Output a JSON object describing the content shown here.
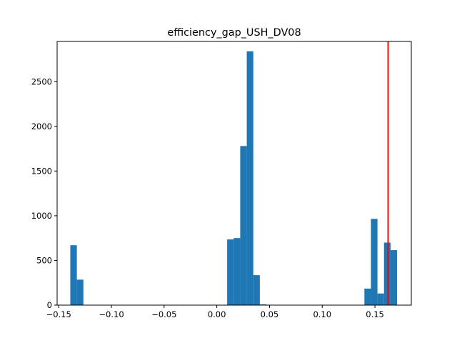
{
  "chart_data": {
    "type": "bar",
    "title": "efficiency_gap_USH_DV08",
    "xlabel": "",
    "ylabel": "",
    "xlim": [
      -0.1515,
      0.1845
    ],
    "ylim": [
      0,
      2950
    ],
    "bin_width": 0.0062,
    "bins": [
      {
        "x0": -0.139,
        "x1": -0.1328,
        "count": 670
      },
      {
        "x0": -0.1328,
        "x1": -0.1266,
        "count": 285
      },
      {
        "x0": 0.0098,
        "x1": 0.016,
        "count": 735
      },
      {
        "x0": 0.016,
        "x1": 0.0222,
        "count": 750
      },
      {
        "x0": 0.0222,
        "x1": 0.0284,
        "count": 1780
      },
      {
        "x0": 0.0284,
        "x1": 0.0346,
        "count": 2840
      },
      {
        "x0": 0.0346,
        "x1": 0.0408,
        "count": 335
      },
      {
        "x0": 0.0408,
        "x1": 0.047,
        "count": 8
      },
      {
        "x0": 0.14,
        "x1": 0.1462,
        "count": 185
      },
      {
        "x0": 0.1462,
        "x1": 0.1524,
        "count": 965
      },
      {
        "x0": 0.1524,
        "x1": 0.1586,
        "count": 130
      },
      {
        "x0": 0.1586,
        "x1": 0.1648,
        "count": 700
      },
      {
        "x0": 0.1648,
        "x1": 0.171,
        "count": 615
      }
    ],
    "vline": {
      "x": 0.1625,
      "color": "#ff0000"
    },
    "xticks": [
      -0.15,
      -0.1,
      -0.05,
      0.0,
      0.05,
      0.1,
      0.15
    ],
    "xtick_labels": [
      "−0.15",
      "−0.10",
      "−0.05",
      "0.00",
      "0.05",
      "0.10",
      "0.15"
    ],
    "yticks": [
      0,
      500,
      1000,
      1500,
      2000,
      2500
    ],
    "ytick_labels": [
      "0",
      "500",
      "1000",
      "1500",
      "2000",
      "2500"
    ],
    "grid": false,
    "colors": {
      "bar": "#1f77b4",
      "vline": "#ff0000",
      "axis": "#000000",
      "background": "#ffffff"
    }
  }
}
